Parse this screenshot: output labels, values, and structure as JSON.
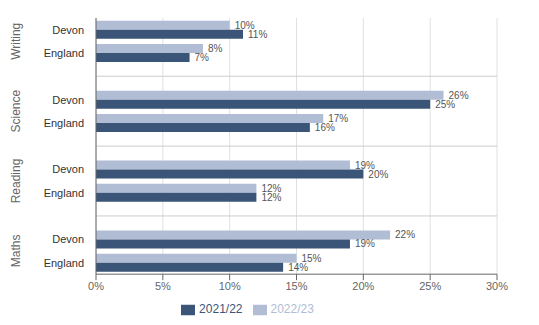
{
  "chart_data": {
    "type": "bar",
    "orientation": "horizontal",
    "categories": [
      "England",
      "Devon",
      "England",
      "Devon",
      "England",
      "Devon",
      "England",
      "Devon"
    ],
    "group_labels": [
      "Maths",
      "Reading",
      "Science",
      "Writing"
    ],
    "series": [
      {
        "name": "2022/23",
        "color": "#b0bdd4",
        "values": [
          15,
          22,
          12,
          19,
          17,
          26,
          8,
          10
        ],
        "value_labels": [
          "15%",
          "22%",
          "12%",
          "19%",
          "17%",
          "26%",
          "8%",
          "10%"
        ]
      },
      {
        "name": "2021/22",
        "color": "#3a5578",
        "values": [
          14,
          19,
          12,
          20,
          16,
          25,
          7,
          11
        ],
        "value_labels": [
          "14%",
          "19%",
          "12%",
          "20%",
          "16%",
          "25%",
          "7%",
          "11%"
        ]
      }
    ],
    "xlim": [
      0,
      30
    ],
    "xticks": [
      {
        "value": 0,
        "label": "0%"
      },
      {
        "value": 5,
        "label": "5%"
      },
      {
        "value": 10,
        "label": "10%"
      },
      {
        "value": 15,
        "label": "15%"
      },
      {
        "value": 20,
        "label": "20%"
      },
      {
        "value": 25,
        "label": "25%"
      },
      {
        "value": 30,
        "label": "30%"
      }
    ],
    "grid": true,
    "data_labels": true,
    "legend": "bottom"
  }
}
